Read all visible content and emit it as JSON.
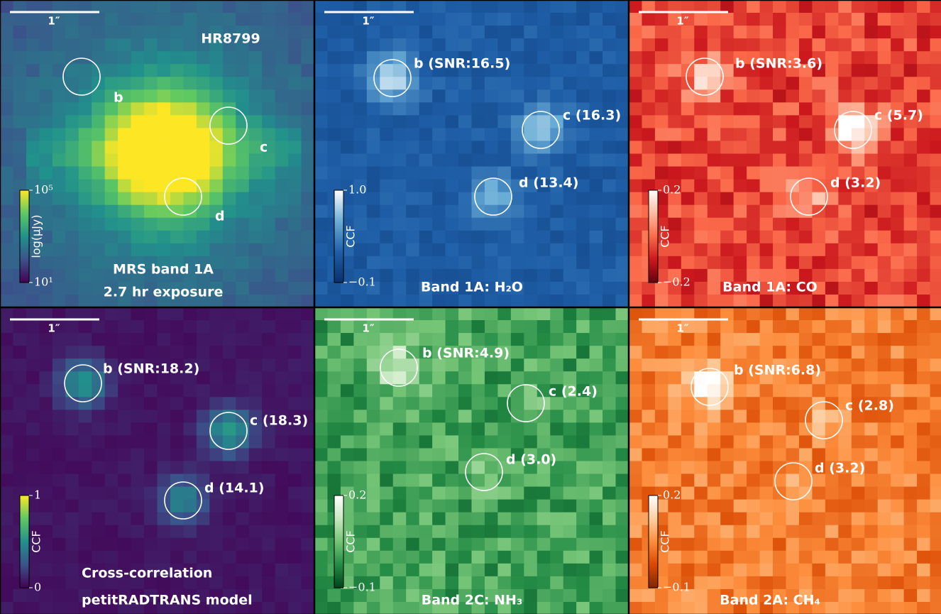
{
  "panels": [
    {
      "scale_bar": "1″",
      "target": "HR8799",
      "markers": [
        "b",
        "c",
        "d"
      ],
      "lines": [
        "MRS band 1A",
        "2.7 hr exposure"
      ],
      "colormap": [
        "#440154",
        "#3b528b",
        "#21918c",
        "#5ec962",
        "#fde725"
      ],
      "colorbar": {
        "label": "log(μJy)",
        "log": true,
        "lim": [
          10,
          100000
        ],
        "ticks": [
          {
            "value": 100000,
            "label": "10⁵"
          },
          {
            "value": 10,
            "label": "10¹"
          }
        ]
      }
    },
    {
      "scale_bar": "1″",
      "markers": [
        "b (SNR:16.5)",
        "c (16.3)",
        "d (13.4)"
      ],
      "lines": [
        "Band 1A: H₂O"
      ],
      "colormap": [
        "#08306b",
        "#1f5fa8",
        "#6baed6",
        "#ffffff"
      ],
      "colorbar": {
        "label": "CCF",
        "log": false,
        "lim": [
          -0.1,
          1
        ],
        "ticks": [
          {
            "value": 1,
            "label": "1.0"
          },
          {
            "value": -0.1,
            "label": "−0.1"
          }
        ]
      }
    },
    {
      "scale_bar": "1″",
      "markers": [
        "b (SNR:3.6)",
        "c (5.7)",
        "d (3.2)"
      ],
      "lines": [
        "Band 1A: CO"
      ],
      "colormap": [
        "#67000d",
        "#cb181d",
        "#fb6a4a",
        "#fcbba1",
        "#ffffff"
      ],
      "colorbar": {
        "label": "CCF",
        "log": false,
        "lim": [
          -0.2,
          0.2
        ],
        "ticks": [
          0.2,
          {
            "value": -0.2,
            "label": "−0.2"
          }
        ]
      }
    },
    {
      "scale_bar": "1″",
      "markers": [
        "b (SNR:18.2)",
        "c (18.3)",
        "d (14.1)"
      ],
      "lines": [
        "Cross-correlation",
        "petitRADTRANS model"
      ],
      "colormap": [
        "#440154",
        "#3b528b",
        "#21918c",
        "#5ec962",
        "#fde725"
      ],
      "colorbar": {
        "label": "CCF",
        "log": false,
        "lim": [
          0,
          1
        ],
        "ticks": [
          1,
          0
        ]
      }
    },
    {
      "scale_bar": "1″",
      "markers": [
        "b (SNR:4.9)",
        "c (2.4)",
        "d (3.0)"
      ],
      "lines": [
        "Band 2C: NH₃"
      ],
      "colormap": [
        "#00441b",
        "#238b45",
        "#74c476",
        "#c7e9c0",
        "#ffffff"
      ],
      "colorbar": {
        "label": "CCF",
        "log": false,
        "lim": [
          -0.1,
          0.2
        ],
        "ticks": [
          0.2,
          {
            "value": -0.1,
            "label": "−0.1"
          }
        ]
      }
    },
    {
      "scale_bar": "1″",
      "markers": [
        "b (SNR:6.8)",
        "c (2.8)",
        "d (3.2)"
      ],
      "lines": [
        "Band 2A: CH₄"
      ],
      "colormap": [
        "#7f2704",
        "#d94801",
        "#fd8d3c",
        "#fdd0a2",
        "#ffffff"
      ],
      "colorbar": {
        "label": "CCF",
        "log": false,
        "lim": [
          -0.1,
          0.2
        ],
        "ticks": [
          0.2,
          {
            "value": -0.1,
            "label": "−0.1"
          }
        ]
      }
    }
  ]
}
